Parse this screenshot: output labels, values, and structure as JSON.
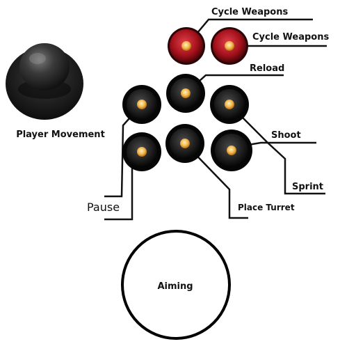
{
  "labels": {
    "player_movement": "Player Movement",
    "cycle_weapons_1": "Cycle Weapons",
    "cycle_weapons_2": "Cycle Weapons",
    "reload": "Reload",
    "shoot": "Shoot",
    "sprint": "Sprint",
    "pause": "Pause",
    "place_turret": "Place Turret",
    "aiming": "Aiming"
  },
  "colors": {
    "red_button": "#b0141a",
    "black_button": "#2a2a2a",
    "button_light": "#f0b050",
    "leader_line": "#111111",
    "joystick": "#333333"
  },
  "icons": {
    "joystick": "joystick-icon",
    "arcade_button": "arcade-button-icon"
  }
}
